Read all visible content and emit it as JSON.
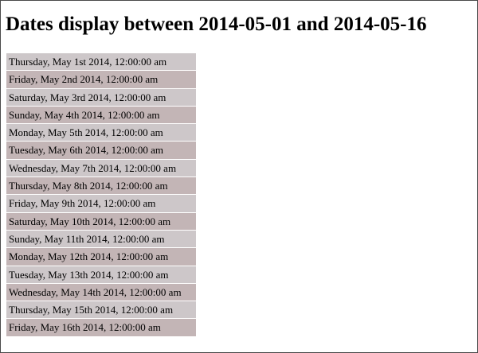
{
  "page": {
    "title": "Dates display between 2014-05-01 and 2014-05-16"
  },
  "dates": [
    "Thursday, May 1st 2014, 12:00:00 am",
    "Friday, May 2nd 2014, 12:00:00 am",
    "Saturday, May 3rd 2014, 12:00:00 am",
    "Sunday, May 4th 2014, 12:00:00 am",
    "Monday, May 5th 2014, 12:00:00 am",
    "Tuesday, May 6th 2014, 12:00:00 am",
    "Wednesday, May 7th 2014, 12:00:00 am",
    "Thursday, May 8th 2014, 12:00:00 am",
    "Friday, May 9th 2014, 12:00:00 am",
    "Saturday, May 10th 2014, 12:00:00 am",
    "Sunday, May 11th 2014, 12:00:00 am",
    "Monday, May 12th 2014, 12:00:00 am",
    "Tuesday, May 13th 2014, 12:00:00 am",
    "Wednesday, May 14th 2014, 12:00:00 am",
    "Thursday, May 15th 2014, 12:00:00 am",
    "Friday, May 16th 2014, 12:00:00 am"
  ],
  "colors": {
    "row_odd": "#cdc7c9",
    "row_even": "#c3b5b6"
  }
}
